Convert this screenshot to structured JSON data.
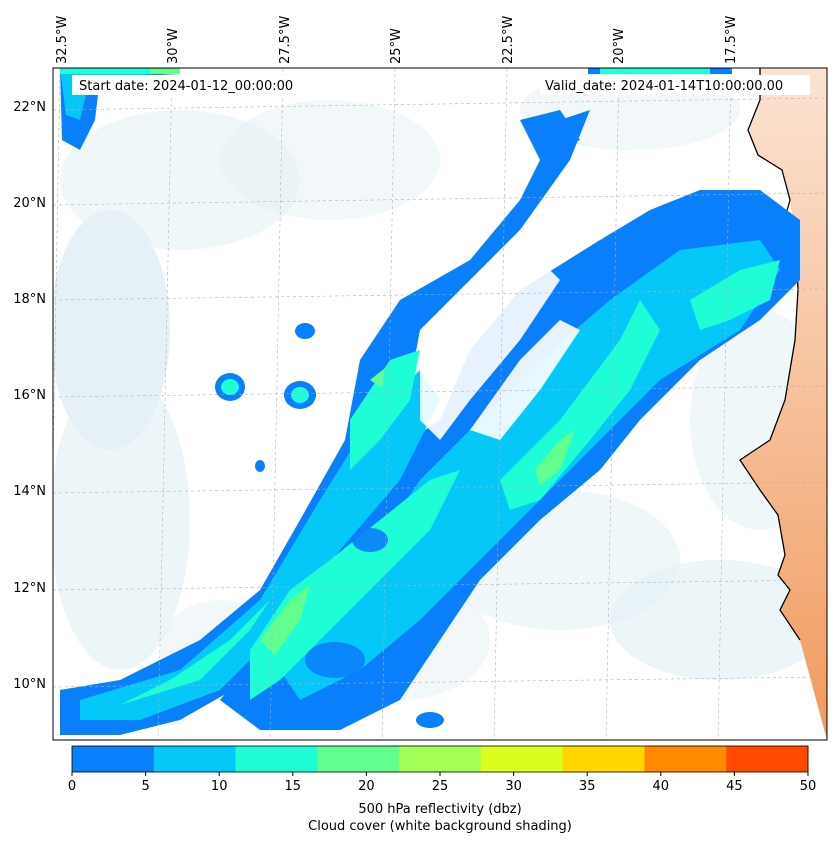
{
  "header": {
    "start_label": "Start date: 2024-01-12_00:00:00",
    "valid_label": "Valid_date: 2024-01-14T10:00:00.00"
  },
  "map": {
    "lon_labels": [
      "32.5°W",
      "30°W",
      "27.5°W",
      "25°W",
      "22.5°W",
      "20°W",
      "17.5°W"
    ],
    "lat_labels": [
      "22°N",
      "20°N",
      "18°N",
      "16°N",
      "14°N",
      "12°N",
      "10°N"
    ],
    "gridlines": "dashed"
  },
  "colorbar": {
    "ticks": [
      "0",
      "5",
      "10",
      "15",
      "20",
      "25",
      "30",
      "35",
      "40",
      "45",
      "50"
    ],
    "colors": [
      "#0a7ffb",
      "#06c8f8",
      "#1ffdd6",
      "#62fe8f",
      "#a3fe55",
      "#dcfe1e",
      "#ffd600",
      "#ff8a00",
      "#ff4a00"
    ],
    "label_line1": "500 hPa reflectivity (dbz)",
    "label_line2": "Cloud cover (white background shading)"
  },
  "colors": {
    "ocean_cloud": "#cfe6ee",
    "land": "#f3a46a",
    "coast": "#000000"
  }
}
